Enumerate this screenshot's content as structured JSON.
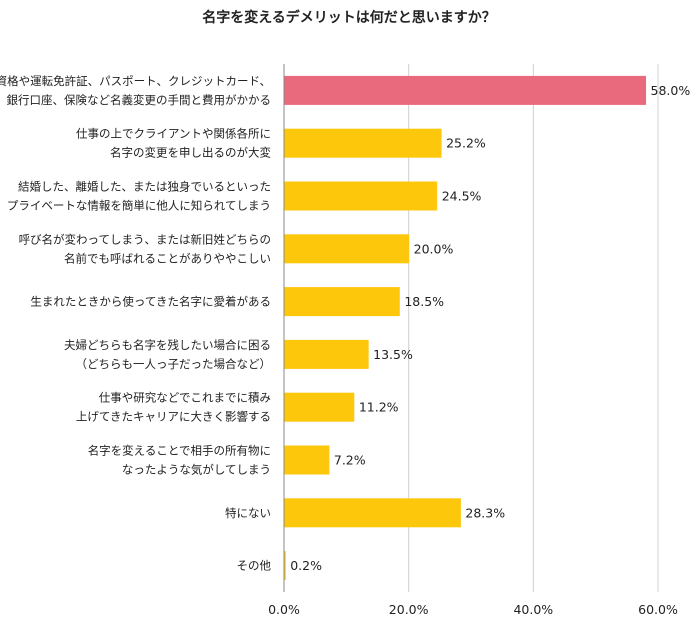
{
  "chart_data": {
    "type": "bar",
    "orientation": "horizontal",
    "title": "名字を変えるデメリットは何だと思いますか？",
    "categories": [
      [
        "資格や運転免許証、パスポート、クレジットカード、",
        "銀行口座、保険など名義変更の手間と費用がかかる"
      ],
      [
        "仕事の上でクライアントや関係各所に",
        "名字の変更を申し出るのが大変"
      ],
      [
        "結婚した、離婚した、または独身でいるといった",
        "プライベートな情報を簡単に他人に知られてしまう"
      ],
      [
        "呼び名が変わってしまう、または新旧姓どちらの",
        "名前でも呼ばれることがありややこしい"
      ],
      [
        "生まれたときから使ってきた名字に愛着がある"
      ],
      [
        "夫婦どちらも名字を残したい場合に困る",
        "（どちらも一人っ子だった場合など）"
      ],
      [
        "仕事や研究などでこれまでに積み",
        "上げてきたキャリアに大きく影響する"
      ],
      [
        "名字を変えることで相手の所有物に",
        "なったような気がしてしまう"
      ],
      [
        "特にない"
      ],
      [
        "その他"
      ]
    ],
    "values": [
      58.0,
      25.2,
      24.5,
      20.0,
      18.5,
      13.5,
      11.2,
      7.2,
      28.3,
      0.2
    ],
    "value_labels": [
      "58.0%",
      "25.2%",
      "24.5%",
      "20.0%",
      "18.5%",
      "13.5%",
      "11.2%",
      "7.2%",
      "28.3%",
      "0.2%"
    ],
    "highlight_index": 0,
    "colors": {
      "highlight": "#e86a7c",
      "default": "#fdc80b",
      "grid": "#d0d0d0",
      "axis": "#888888"
    },
    "xlim": [
      0,
      60
    ],
    "xticks": [
      0,
      20,
      40,
      60
    ],
    "xtick_labels": [
      "0.0%",
      "20.0%",
      "40.0%",
      "60.0%"
    ],
    "grid": true,
    "xlabel": "",
    "ylabel": ""
  }
}
